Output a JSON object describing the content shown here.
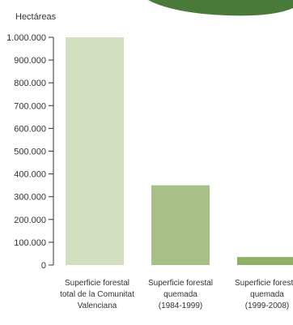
{
  "chart_data": {
    "type": "bar",
    "ylabel": "Hectáreas",
    "ylim": [
      0,
      1000000
    ],
    "yticks": [
      0,
      100000,
      200000,
      300000,
      400000,
      500000,
      600000,
      700000,
      800000,
      900000,
      1000000
    ],
    "ytick_labels": [
      "0",
      "100.000",
      "200.000",
      "300.000",
      "400.000",
      "500.000",
      "600.000",
      "700.000",
      "800.000",
      "900.000",
      "1.000.000"
    ],
    "categories": [
      [
        "Superficie forestal",
        "total de la Comunitat",
        "Valenciana"
      ],
      [
        "Superficie forestal",
        "quemada",
        "(1984-1999)"
      ],
      [
        "Superficie forestal",
        "quemada",
        "(1999-2008)"
      ]
    ],
    "values": [
      1000000,
      350000,
      35000
    ],
    "colors": [
      "#d3ddc0",
      "#a7c087",
      "#8db063"
    ],
    "grid": false
  },
  "decoration": {
    "banner_color": "#4a7a3a"
  }
}
